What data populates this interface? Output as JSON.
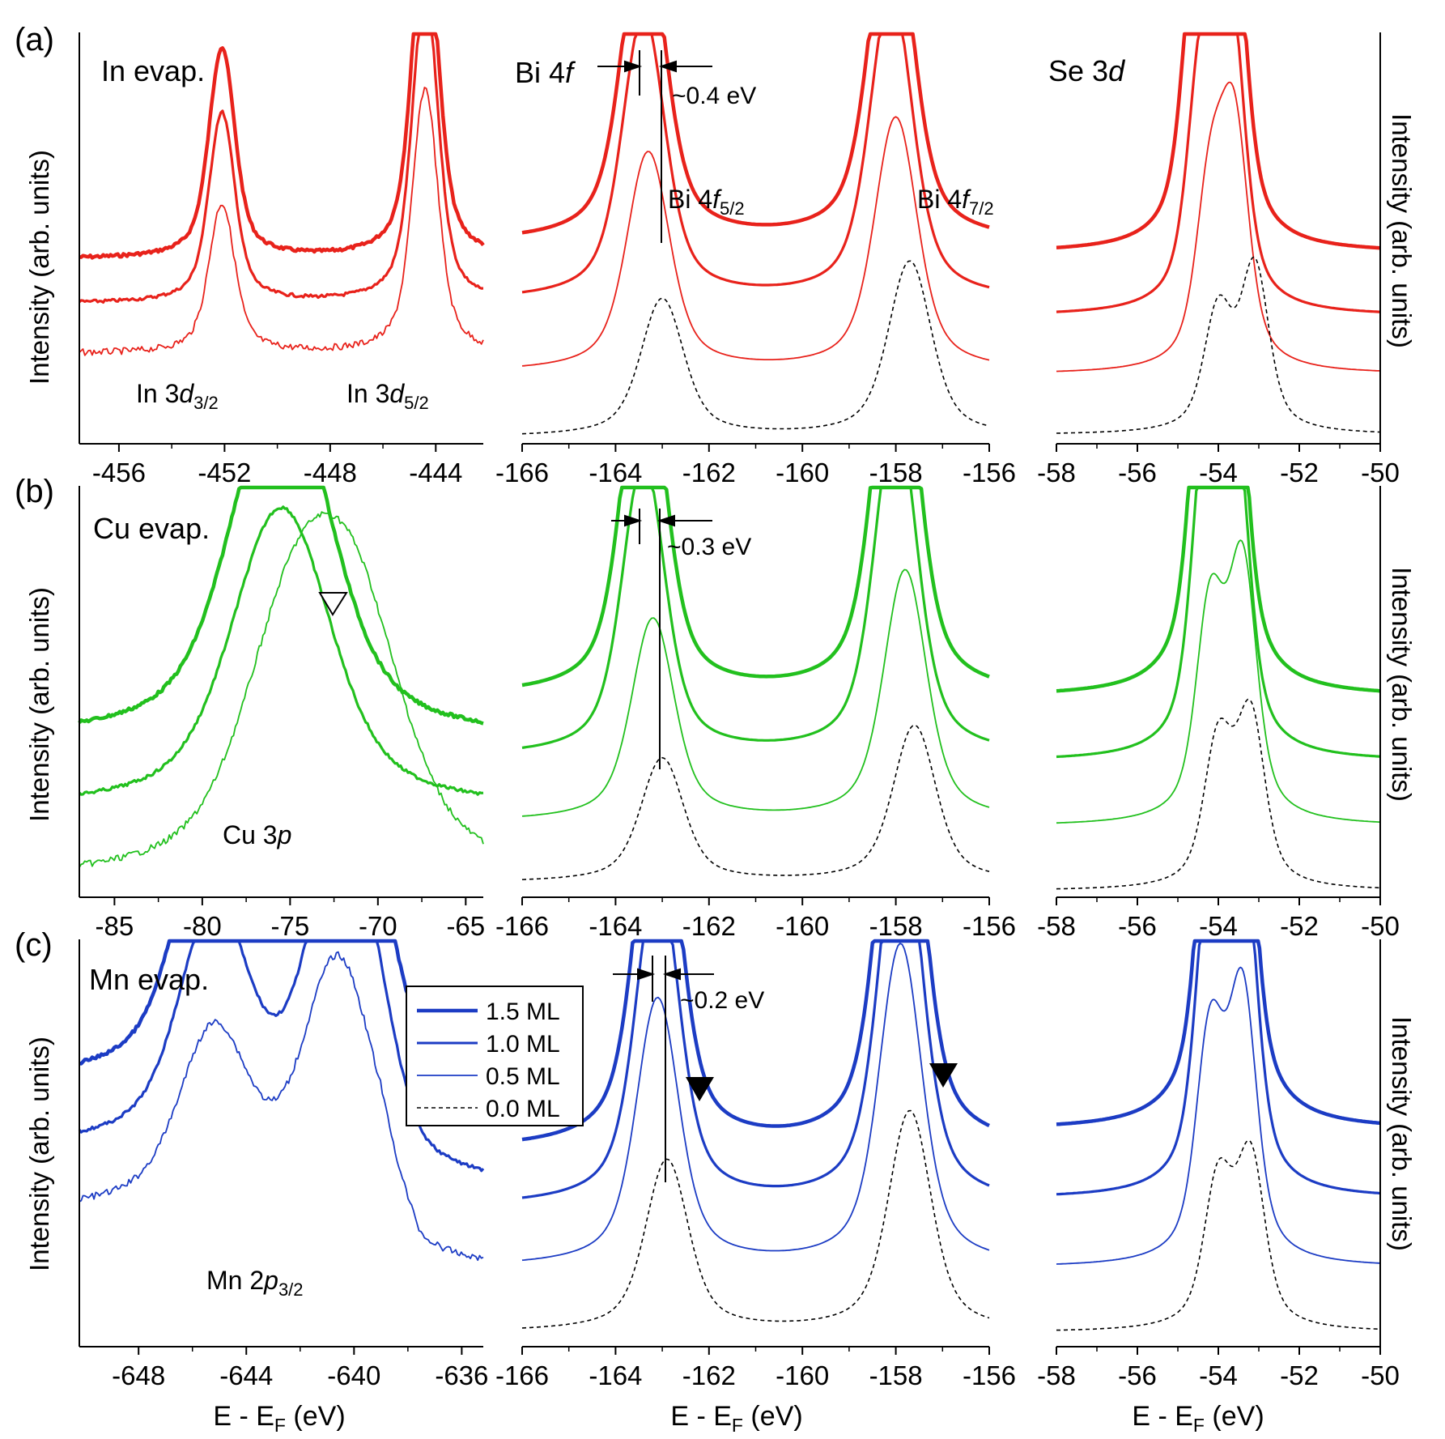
{
  "figure": {
    "xlabel": "E - E",
    "xlabel_sub": "F",
    "xlabel_unit": " (eV)",
    "ylabel": "Intensity (arb. units)"
  },
  "legend": {
    "entries": [
      {
        "label": "1.5 ML",
        "style": "thick"
      },
      {
        "label": "1.0 ML",
        "style": "medium"
      },
      {
        "label": "0.5 ML",
        "style": "thin"
      },
      {
        "label": "0.0 ML",
        "style": "dashed"
      }
    ]
  },
  "rows": [
    {
      "id": "a",
      "letter": "(a)",
      "color": "#e8221b",
      "title": "In evap."
    },
    {
      "id": "b",
      "letter": "(b)",
      "color": "#22c01e",
      "title": "Cu evap."
    },
    {
      "id": "c",
      "letter": "(c)",
      "color": "#1c3cc4",
      "title": "Mn evap."
    }
  ],
  "column_titles": {
    "bi": "Bi 4",
    "bi_f": "f",
    "se": "Se 3",
    "se_d": "d"
  },
  "annotations": {
    "in_3d32": {
      "pre": "In 3",
      "it": "d",
      "sub": "3/2"
    },
    "in_3d52": {
      "pre": "In 3",
      "it": "d",
      "sub": "5/2"
    },
    "bi_4f52": {
      "pre": "Bi 4",
      "it": "f",
      "sub": "5/2"
    },
    "bi_4f72": {
      "pre": "Bi 4",
      "it": "f",
      "sub": "7/2"
    },
    "cu_3p": {
      "pre": "Cu 3",
      "it": "p"
    },
    "mn_2p32": {
      "pre": "Mn 2",
      "it": "p",
      "sub": "3/2"
    },
    "shift_a": "~0.4 eV",
    "shift_b": "~0.3 eV",
    "shift_c": "~0.2 eV"
  },
  "chart_data": [
    {
      "panel": "a-left",
      "type": "line",
      "x_ticks": [
        "-456",
        "-452",
        "-448",
        "-444"
      ],
      "xlim": [
        -457.5,
        -442.2
      ],
      "series": [
        {
          "name": "1.5 ML",
          "peaks": [
            {
              "x": -452.1,
              "y": 0.62
            },
            {
              "x": -444.4,
              "y": 1.0
            }
          ]
        },
        {
          "name": "1.0 ML",
          "peaks": [
            {
              "x": -452.1,
              "y": 0.56
            },
            {
              "x": -444.4,
              "y": 0.92
            }
          ]
        },
        {
          "name": "0.5 ML",
          "peaks": [
            {
              "x": -452.1,
              "y": 0.44
            },
            {
              "x": -444.4,
              "y": 0.78
            }
          ]
        }
      ]
    },
    {
      "panel": "a-mid",
      "type": "line",
      "x_ticks": [
        "-166",
        "-164",
        "-162",
        "-160",
        "-158",
        "-156"
      ],
      "xlim": [
        -166,
        -156
      ],
      "series": [
        {
          "name": "1.5 ML",
          "peaks": [
            {
              "x": -163.4,
              "y": 0.93
            },
            {
              "x": -158.1,
              "y": 1.0
            }
          ]
        },
        {
          "name": "1.0 ML",
          "peaks": [
            {
              "x": -163.4,
              "y": 0.82
            },
            {
              "x": -158.1,
              "y": 0.89
            }
          ]
        },
        {
          "name": "0.5 ML",
          "peaks": [
            {
              "x": -163.3,
              "y": 0.63
            },
            {
              "x": -158.0,
              "y": 0.73
            }
          ]
        },
        {
          "name": "0.0 ML",
          "peaks": [
            {
              "x": -163.0,
              "y": 0.44
            },
            {
              "x": -157.7,
              "y": 0.56
            }
          ]
        }
      ]
    },
    {
      "panel": "a-right",
      "type": "line",
      "x_ticks": [
        "-58",
        "-56",
        "-54",
        "-52",
        "-50"
      ],
      "xlim": [
        -58,
        -50
      ],
      "series": [
        {
          "name": "1.5 ML",
          "peaks": [
            {
              "x": -54.5,
              "y": 0.88
            },
            {
              "x": -53.7,
              "y": 1.0
            }
          ]
        },
        {
          "name": "1.0 ML",
          "peaks": [
            {
              "x": -54.4,
              "y": 0.7
            },
            {
              "x": -53.7,
              "y": 0.83
            }
          ]
        },
        {
          "name": "0.5 ML",
          "peaks": [
            {
              "x": -54.2,
              "y": 0.5
            },
            {
              "x": -53.6,
              "y": 0.67
            }
          ]
        },
        {
          "name": "0.0 ML",
          "peaks": [
            {
              "x": -54.0,
              "y": 0.38
            },
            {
              "x": -53.1,
              "y": 0.52
            }
          ]
        }
      ]
    },
    {
      "panel": "b-left",
      "type": "line",
      "x_ticks": [
        "-85",
        "-80",
        "-75",
        "-70",
        "-65"
      ],
      "xlim": [
        -87,
        -64
      ],
      "series": [
        {
          "name": "1.5 ML",
          "peaks": [
            {
              "x": -75.5,
              "y": 1.0
            }
          ]
        },
        {
          "name": "1.0 ML",
          "peaks": [
            {
              "x": -75.5,
              "y": 0.83
            }
          ]
        },
        {
          "name": "0.5 ML",
          "peaks": [
            {
              "x": -75.0,
              "y": 0.6
            },
            {
              "x": -71.3,
              "y": 0.66
            }
          ]
        }
      ]
    },
    {
      "panel": "b-mid",
      "type": "line",
      "x_ticks": [
        "-166",
        "-164",
        "-162",
        "-160",
        "-158",
        "-156"
      ],
      "xlim": [
        -166,
        -156
      ],
      "series": [
        {
          "name": "1.5 ML",
          "peaks": [
            {
              "x": -163.4,
              "y": 0.88
            },
            {
              "x": -158.0,
              "y": 1.0
            }
          ]
        },
        {
          "name": "1.0 ML",
          "peaks": [
            {
              "x": -163.4,
              "y": 0.73
            },
            {
              "x": -158.0,
              "y": 0.85
            }
          ]
        },
        {
          "name": "0.5 ML",
          "peaks": [
            {
              "x": -163.2,
              "y": 0.5
            },
            {
              "x": -157.8,
              "y": 0.62
            }
          ]
        },
        {
          "name": "0.0 ML",
          "peaks": [
            {
              "x": -163.0,
              "y": 0.34
            },
            {
              "x": -157.6,
              "y": 0.43
            }
          ]
        }
      ]
    },
    {
      "panel": "b-right",
      "type": "line",
      "x_ticks": [
        "-58",
        "-56",
        "-54",
        "-52",
        "-50"
      ],
      "xlim": [
        -58,
        -50
      ],
      "series": [
        {
          "name": "1.5 ML",
          "peaks": [
            {
              "x": -54.3,
              "y": 0.96
            },
            {
              "x": -53.7,
              "y": 1.0
            }
          ]
        },
        {
          "name": "1.0 ML",
          "peaks": [
            {
              "x": -54.3,
              "y": 0.8
            },
            {
              "x": -53.6,
              "y": 0.82
            }
          ]
        },
        {
          "name": "0.5 ML",
          "peaks": [
            {
              "x": -54.2,
              "y": 0.55
            },
            {
              "x": -53.4,
              "y": 0.66
            }
          ]
        },
        {
          "name": "0.0 ML",
          "peaks": [
            {
              "x": -54.0,
              "y": 0.42
            },
            {
              "x": -53.2,
              "y": 0.49
            }
          ]
        }
      ]
    },
    {
      "panel": "c-left",
      "type": "line",
      "x_ticks": [
        "-648",
        "-644",
        "-640",
        "-636"
      ],
      "xlim": [
        -650.2,
        -635.2
      ],
      "series": [
        {
          "name": "1.5 ML",
          "peaks": [
            {
              "x": -645.2,
              "y": 0.74
            },
            {
              "x": -640.4,
              "y": 1.0
            }
          ]
        },
        {
          "name": "1.0 ML",
          "peaks": [
            {
              "x": -645.2,
              "y": 0.61
            },
            {
              "x": -640.4,
              "y": 0.83
            }
          ]
        },
        {
          "name": "0.5 ML",
          "peaks": [
            {
              "x": -645.2,
              "y": 0.46
            },
            {
              "x": -640.6,
              "y": 0.65
            }
          ]
        }
      ]
    },
    {
      "panel": "c-mid",
      "type": "line",
      "x_ticks": [
        "-166",
        "-164",
        "-162",
        "-160",
        "-158",
        "-156"
      ],
      "xlim": [
        -166,
        -156
      ],
      "series": [
        {
          "name": "1.5 ML",
          "peaks": [
            {
              "x": -163.1,
              "y": 0.87
            },
            {
              "x": -157.9,
              "y": 1.0
            }
          ]
        },
        {
          "name": "1.0 ML",
          "peaks": [
            {
              "x": -163.1,
              "y": 0.74
            },
            {
              "x": -157.9,
              "y": 0.87
            }
          ]
        },
        {
          "name": "0.5 ML",
          "peaks": [
            {
              "x": -163.1,
              "y": 0.59
            },
            {
              "x": -157.9,
              "y": 0.71
            }
          ]
        },
        {
          "name": "0.0 ML",
          "peaks": [
            {
              "x": -162.9,
              "y": 0.42
            },
            {
              "x": -157.7,
              "y": 0.54
            }
          ]
        }
      ]
    },
    {
      "panel": "c-right",
      "type": "line",
      "x_ticks": [
        "-58",
        "-56",
        "-54",
        "-52",
        "-50"
      ],
      "xlim": [
        -58,
        -50
      ],
      "series": [
        {
          "name": "1.5 ML",
          "peaks": [
            {
              "x": -54.1,
              "y": 0.98
            },
            {
              "x": -53.5,
              "y": 1.0
            }
          ]
        },
        {
          "name": "1.0 ML",
          "peaks": [
            {
              "x": -54.2,
              "y": 0.76
            },
            {
              "x": -53.4,
              "y": 0.8
            }
          ]
        },
        {
          "name": "0.5 ML",
          "peaks": [
            {
              "x": -54.2,
              "y": 0.55
            },
            {
              "x": -53.4,
              "y": 0.65
            }
          ]
        },
        {
          "name": "0.0 ML",
          "peaks": [
            {
              "x": -54.0,
              "y": 0.4
            },
            {
              "x": -53.2,
              "y": 0.46
            }
          ]
        }
      ]
    }
  ]
}
